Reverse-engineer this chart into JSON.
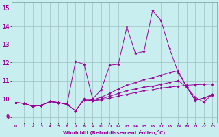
{
  "xlabel": "Windchill (Refroidissement éolien,°C)",
  "bg_color": "#c8eef0",
  "grid_color": "#9fbfbf",
  "line_color": "#990099",
  "xlim": [
    -0.5,
    23.5
  ],
  "ylim": [
    8.7,
    15.3
  ],
  "yticks": [
    9,
    10,
    11,
    12,
    13,
    14,
    15
  ],
  "xticks": [
    0,
    1,
    2,
    3,
    4,
    5,
    6,
    7,
    8,
    9,
    10,
    11,
    12,
    13,
    14,
    15,
    16,
    17,
    18,
    19,
    20,
    21,
    22,
    23
  ],
  "series": [
    {
      "x": [
        0,
        1,
        2,
        3,
        4,
        5,
        6,
        7,
        8,
        9,
        10,
        11,
        12,
        13,
        14,
        15,
        16,
        17,
        18,
        19,
        20,
        21,
        22,
        23
      ],
      "y": [
        9.8,
        9.75,
        9.6,
        9.65,
        9.85,
        9.8,
        9.7,
        9.35,
        9.95,
        9.9,
        9.95,
        10.05,
        10.15,
        10.25,
        10.35,
        10.45,
        10.5,
        10.6,
        10.65,
        10.7,
        10.75,
        10.78,
        10.8,
        10.82
      ]
    },
    {
      "x": [
        0,
        1,
        2,
        3,
        4,
        5,
        6,
        7,
        8,
        9,
        10,
        11,
        12,
        13,
        14,
        15,
        16,
        17,
        18,
        19,
        20,
        21,
        22,
        23
      ],
      "y": [
        9.8,
        9.75,
        9.6,
        9.65,
        9.85,
        9.8,
        9.7,
        9.35,
        9.95,
        9.9,
        10.0,
        10.15,
        10.3,
        10.45,
        10.55,
        10.65,
        10.7,
        10.8,
        10.9,
        11.0,
        10.65,
        9.95,
        10.05,
        10.2
      ]
    },
    {
      "x": [
        0,
        1,
        2,
        3,
        4,
        5,
        6,
        7,
        8,
        9,
        10,
        11,
        12,
        13,
        14,
        15,
        16,
        17,
        18,
        19,
        20,
        21,
        22,
        23
      ],
      "y": [
        9.8,
        9.75,
        9.6,
        9.65,
        9.85,
        9.8,
        9.7,
        9.35,
        10.0,
        9.95,
        10.1,
        10.3,
        10.55,
        10.75,
        10.9,
        11.05,
        11.15,
        11.3,
        11.45,
        11.55,
        10.65,
        9.92,
        10.05,
        10.25
      ]
    },
    {
      "x": [
        0,
        1,
        2,
        3,
        4,
        5,
        6,
        7,
        8,
        9,
        10,
        11,
        12,
        13,
        14,
        15,
        16,
        17,
        18,
        19,
        20,
        21,
        22,
        23
      ],
      "y": [
        9.8,
        9.75,
        9.6,
        9.65,
        9.85,
        9.8,
        9.7,
        12.05,
        11.9,
        10.0,
        10.5,
        11.85,
        11.9,
        13.95,
        12.5,
        12.6,
        14.85,
        14.3,
        12.75,
        11.45,
        10.65,
        10.1,
        9.82,
        10.25
      ]
    }
  ]
}
